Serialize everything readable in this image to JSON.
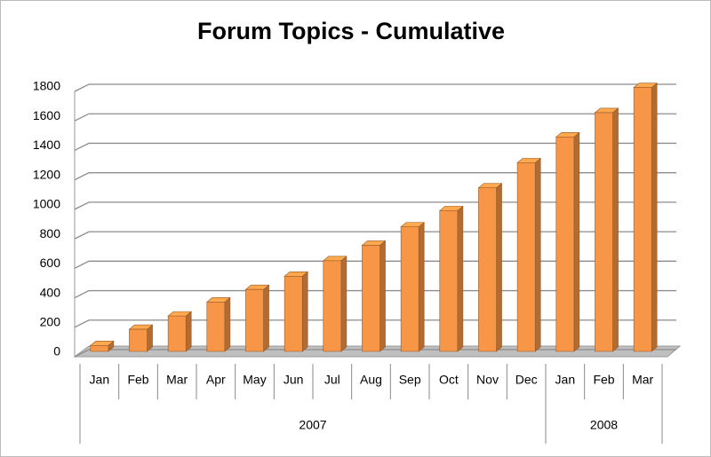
{
  "chart_data": {
    "type": "bar",
    "title": "Forum Topics - Cumulative",
    "groups": [
      {
        "name": "2007",
        "categories": [
          "Jan",
          "Feb",
          "Mar",
          "Apr",
          "May",
          "Jun",
          "Jul",
          "Aug",
          "Sep",
          "Oct",
          "Nov",
          "Dec"
        ],
        "values": [
          40,
          150,
          240,
          335,
          420,
          510,
          615,
          720,
          845,
          955,
          1110,
          1280
        ]
      },
      {
        "name": "2008",
        "categories": [
          "Jan",
          "Feb",
          "Mar"
        ],
        "values": [
          1455,
          1620,
          1790
        ]
      }
    ],
    "color": "#f79646",
    "ylim": [
      0,
      1800
    ],
    "yticks": [
      0,
      200,
      400,
      600,
      800,
      1000,
      1200,
      1400,
      1600,
      1800
    ],
    "grid": true
  }
}
